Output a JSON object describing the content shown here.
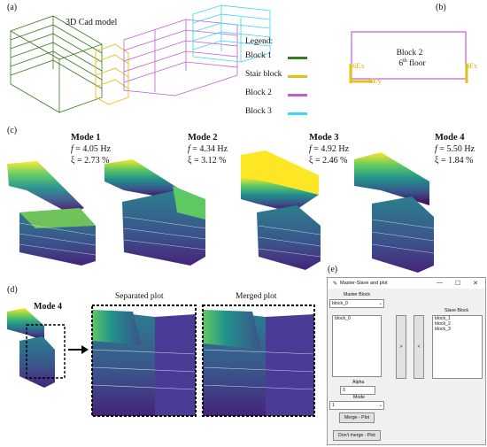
{
  "panels": {
    "a": "(a)",
    "b": "(b)",
    "c": "(c)",
    "d": "(d)",
    "e": "(e)"
  },
  "a": {
    "cad_title": "3D Cad model",
    "legend_title": "Legend:",
    "legend": [
      {
        "label": "Block 1",
        "color": "#3b7a1e"
      },
      {
        "label": "Stair block",
        "color": "#e0c21a"
      },
      {
        "label": "Block 2",
        "color": "#c25bd6"
      },
      {
        "label": "Block 3",
        "color": "#3fd6f0"
      }
    ]
  },
  "b": {
    "block": "Block 2",
    "floor_num": "6",
    "floor_sup": "th",
    "floor_word": " floor",
    "ex": "6Ex",
    "ey": "6Ey",
    "fx": "6Fx"
  },
  "c": {
    "modes": [
      {
        "name": "Mode 1",
        "f_sym": "f",
        "f_val": " = 4.05 Hz",
        "xi": "ξ = 2.73 %"
      },
      {
        "name": "Mode 2",
        "f_sym": "f",
        "f_val": " = 4.34 Hz",
        "xi": "ξ = 3.12 %"
      },
      {
        "name": "Mode 3",
        "f_sym": "f",
        "f_val": " = 4.92 Hz",
        "xi": "ξ = 2.46 %"
      },
      {
        "name": "Mode 4",
        "f_sym": "f",
        "f_val": " = 5.50 Hz",
        "xi": "ξ = 1.84 %"
      }
    ]
  },
  "d": {
    "mode": "Mode 4",
    "sep": "Separated plot",
    "merged": "Merged plot"
  },
  "e": {
    "title": "Master-Slave and plot",
    "ctl_min": "—",
    "ctl_max": "☐",
    "ctl_close": "✕",
    "master_label": "Master Block",
    "master_select": "block_0",
    "master_items": [
      "block_0"
    ],
    "slave_label": "Slave Block",
    "slave_items": [
      "block_1",
      "block_2",
      "block_3"
    ],
    "to_right": ">",
    "to_left": "<",
    "alpha_label": "Alpha",
    "alpha_value": "3",
    "mode_label": "Mode",
    "mode_value": "1",
    "merge_btn": "Merge - Plot",
    "nomerge_btn": "Don't merge - Plot"
  },
  "colors": {
    "viridis_top": "#fde725",
    "viridis_mid": "#21918c",
    "viridis_low": "#3b528b",
    "viridis_bot": "#440154"
  }
}
